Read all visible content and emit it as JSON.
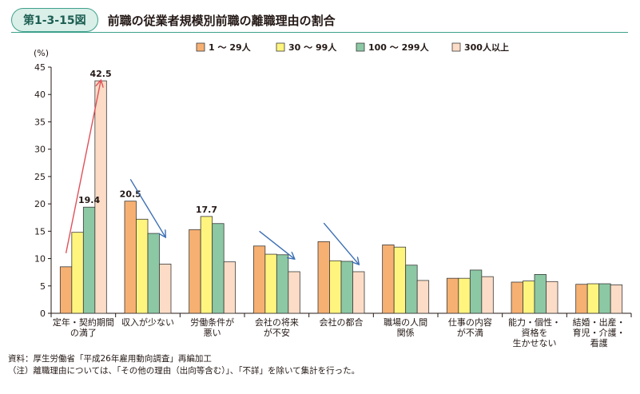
{
  "figure": {
    "number": "第1-3-15図",
    "title": "前職の従業者規模別前職の離職理由の割合"
  },
  "notes": {
    "source": "資料：厚生労働省「平成26年雇用動向調査」再編加工",
    "note": "（注）離職理由については、「その他の理由（出向等含む）」、「不詳」を除いて集計を行った。"
  },
  "chart_data": {
    "type": "bar",
    "y_unit": "(%)",
    "ylim": [
      0,
      45
    ],
    "yticks": [
      0,
      5,
      10,
      15,
      20,
      25,
      30,
      35,
      40,
      45
    ],
    "grid": false,
    "legend_position": "top",
    "categories": [
      [
        "定年・契約期間",
        "の満了"
      ],
      [
        "収入が少ない"
      ],
      [
        "労働条件が",
        "悪い"
      ],
      [
        "会社の将来",
        "が不安"
      ],
      [
        "会社の都合"
      ],
      [
        "職場の人間",
        "関係"
      ],
      [
        "仕事の内容",
        "が不満"
      ],
      [
        "能力・個性・",
        "資格を",
        "生かせない"
      ],
      [
        "結婚・出産・",
        "育児・介護・",
        "看護"
      ]
    ],
    "series": [
      {
        "name": "1 〜 29人",
        "color": "#f6b072",
        "values": [
          8.5,
          20.5,
          15.3,
          12.3,
          13.1,
          12.5,
          6.4,
          5.7,
          5.3
        ]
      },
      {
        "name": "30 〜 99人",
        "color": "#fff57e",
        "values": [
          14.8,
          17.2,
          17.7,
          10.8,
          9.6,
          12.1,
          6.4,
          5.9,
          5.4
        ]
      },
      {
        "name": "100 〜 299人",
        "color": "#8cc8a4",
        "values": [
          19.4,
          14.6,
          16.4,
          10.7,
          9.5,
          8.8,
          7.9,
          7.1,
          5.4
        ]
      },
      {
        "name": "300人以上",
        "color": "#fcdcc6",
        "values": [
          42.5,
          9.0,
          9.4,
          7.6,
          7.6,
          6.0,
          6.7,
          5.8,
          5.2
        ]
      }
    ],
    "data_labels": [
      {
        "category": 0,
        "series": 2,
        "text": "19.4"
      },
      {
        "category": 0,
        "series": 3,
        "text": "42.5"
      },
      {
        "category": 1,
        "series": 0,
        "text": "20.5"
      },
      {
        "category": 2,
        "series": 1,
        "text": "17.7"
      }
    ],
    "arrows": [
      {
        "color": "#e0505a",
        "from": {
          "category": 0,
          "series": 0,
          "value": 11
        },
        "to": {
          "category": 0,
          "series": 3,
          "value": 42.5
        }
      },
      {
        "color": "#3c6fb4",
        "from": {
          "category": 1,
          "series": 0,
          "value": 24.5
        },
        "to": {
          "category": 1,
          "series": 3,
          "value": 14
        }
      },
      {
        "color": "#3c6fb4",
        "from": {
          "category": 3,
          "series": 0,
          "value": 15
        },
        "to": {
          "category": 3,
          "series": 3,
          "value": 10
        }
      },
      {
        "color": "#3c6fb4",
        "from": {
          "category": 4,
          "series": 0,
          "value": 16.5
        },
        "to": {
          "category": 4,
          "series": 3,
          "value": 9
        }
      }
    ]
  }
}
